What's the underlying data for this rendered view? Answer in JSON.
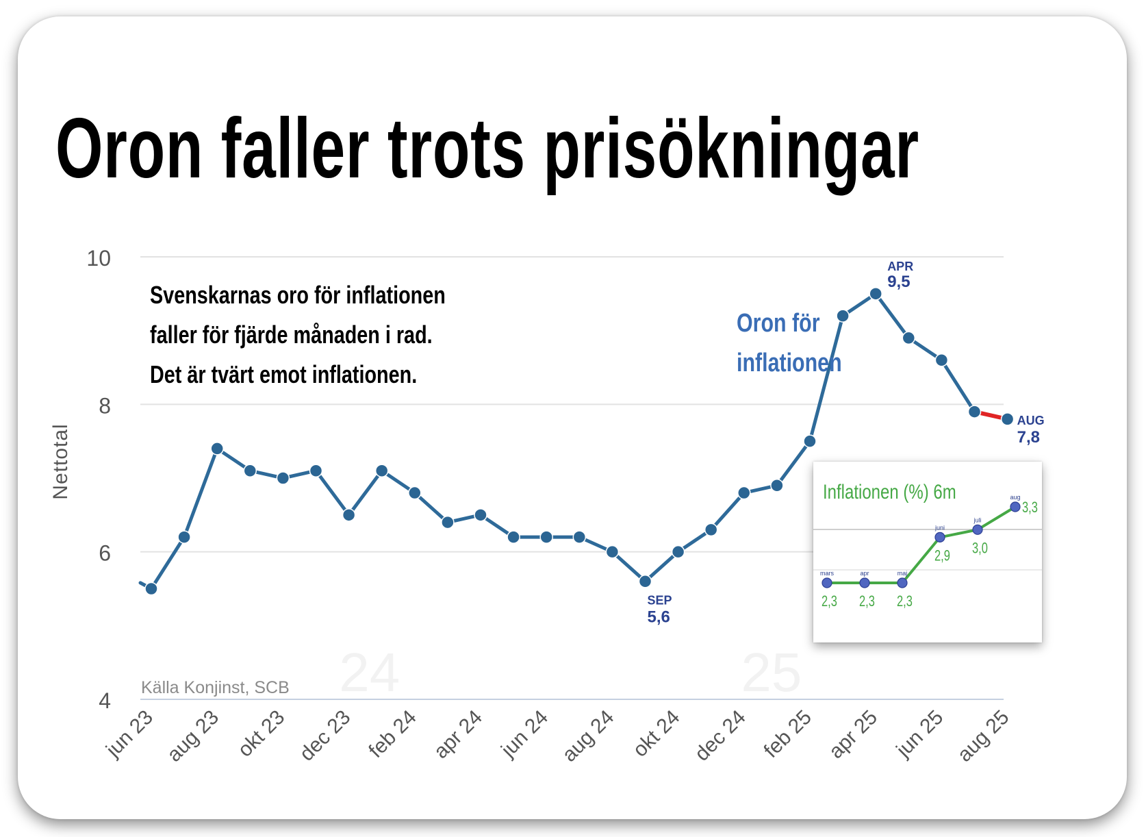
{
  "title": "Oron faller trots prisökningar",
  "annotation_lines": [
    "Svenskarnas oro för inflationen",
    "faller för fjärde månaden i rad.",
    "Det är tvärt emot inflationen."
  ],
  "series_label_lines": [
    "Oron för",
    "inflationen"
  ],
  "source": "Källa Konjinst, SCB",
  "watermarks": [
    "24",
    "25"
  ],
  "colors": {
    "line": "#2e6a99",
    "marker": "#2b6593",
    "recent_segment": "#e02424",
    "callout": "#2b4290",
    "series_label": "#3a6db5",
    "inset_line": "#45a845",
    "inset_marker": "#5066c0",
    "grid": "#e2e2e2",
    "axis_text": "#555555"
  },
  "chart_data": [
    {
      "type": "line",
      "title": "Svenskarnas oro för inflationen",
      "ylabel": "Nettotal",
      "ylim": [
        4,
        10
      ],
      "y_ticks": [
        "4",
        "6",
        "8",
        "10"
      ],
      "x_tick_labels": [
        "jun 23",
        "aug 23",
        "okt 23",
        "dec 23",
        "feb 24",
        "apr 24",
        "jun 24",
        "aug 24",
        "okt 24",
        "dec 24",
        "feb 25",
        "apr 25",
        "jun 25",
        "aug 25"
      ],
      "grid": true,
      "series": [
        {
          "name": "Oron för inflationen",
          "x": [
            "jun 23",
            "jul 23",
            "aug 23",
            "sep 23",
            "okt 23",
            "nov 23",
            "dec 23",
            "jan 24",
            "feb 24",
            "mar 24",
            "apr 24",
            "maj 24",
            "jun 24",
            "jul 24",
            "aug 24",
            "sep 24",
            "okt 24",
            "nov 24",
            "dec 24",
            "jan 25",
            "feb 25",
            "mar 25",
            "apr 25",
            "maj 25",
            "jun 25",
            "jul 25",
            "aug 25"
          ],
          "values": [
            5.5,
            6.2,
            7.4,
            7.1,
            7.0,
            7.1,
            6.5,
            7.1,
            6.8,
            6.4,
            6.5,
            6.2,
            6.2,
            6.2,
            6.0,
            5.6,
            6.0,
            6.3,
            6.8,
            6.9,
            7.5,
            9.2,
            9.5,
            8.9,
            8.6,
            7.9,
            7.8
          ]
        }
      ],
      "callouts": [
        {
          "month": "SEP",
          "value": "5,6"
        },
        {
          "month": "APR",
          "value": "9,5"
        },
        {
          "month": "AUG",
          "value": "7,8"
        }
      ]
    },
    {
      "type": "line",
      "title": "Inflationen (%) 6m",
      "series": [
        {
          "name": "Inflationen (%)",
          "x": [
            "mars",
            "apr",
            "maj",
            "juni",
            "juli",
            "aug"
          ],
          "values": [
            2.3,
            2.3,
            2.3,
            2.9,
            3.0,
            3.3
          ],
          "value_labels": [
            "2,3",
            "2,3",
            "2,3",
            "2,9",
            "3,0",
            "3,3"
          ]
        }
      ]
    }
  ]
}
